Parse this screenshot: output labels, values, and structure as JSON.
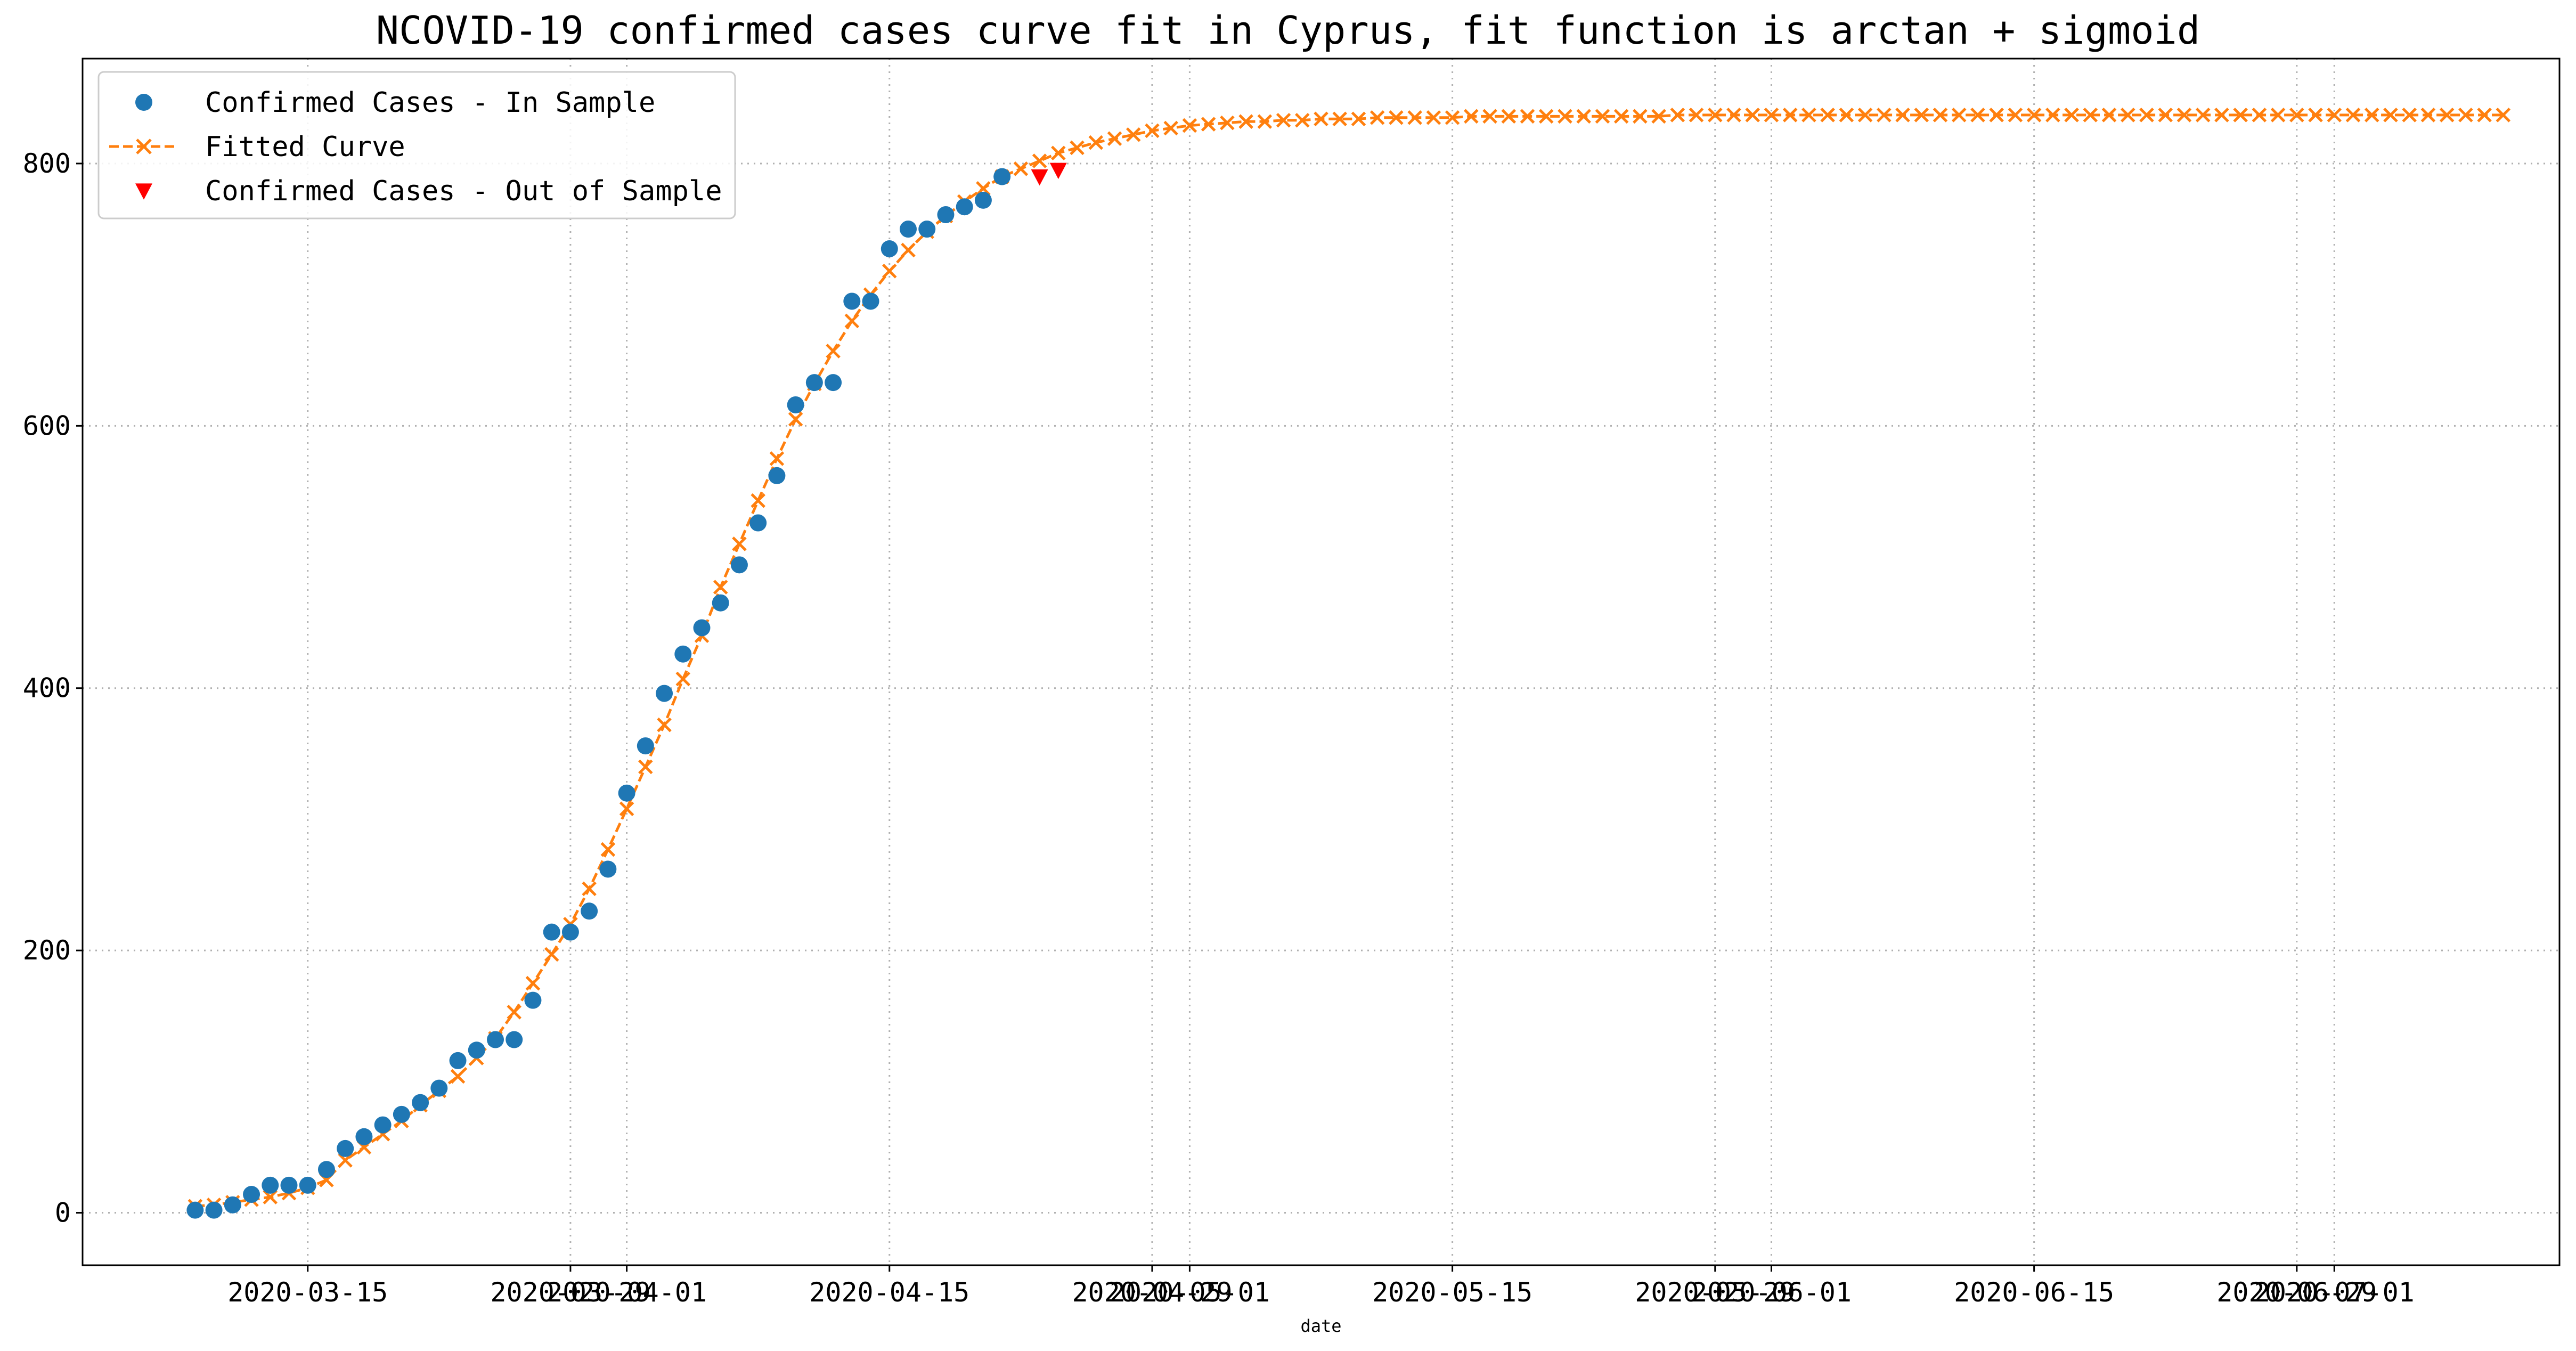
{
  "colors": {
    "in_sample": "#1f77b4",
    "fitted": "#ff7f0e",
    "out_sample": "#ff0000",
    "grid": "#b0b0b0"
  },
  "chart_data": {
    "type": "line",
    "title": "NCOVID-19 confirmed cases curve fit in Cyprus, fit function is arctan + sigmoid",
    "xlabel": "date",
    "ylabel": "",
    "x_type": "date",
    "xlim": [
      "2020-03-03",
      "2020-07-13"
    ],
    "ylim": [
      -40,
      880
    ],
    "grid": true,
    "legend_position": "top-left",
    "x_ticks": [
      {
        "date": "2020-03-15",
        "label": "2020-03-15"
      },
      {
        "date": "2020-03-29",
        "label": "2020-03-29"
      },
      {
        "date": "2020-04-01",
        "label": "2020-04-01"
      },
      {
        "date": "2020-04-15",
        "label": "2020-04-15"
      },
      {
        "date": "2020-04-29",
        "label": "2020-04-29"
      },
      {
        "date": "2020-05-01",
        "label": "2020-05-01"
      },
      {
        "date": "2020-05-15",
        "label": "2020-05-15"
      },
      {
        "date": "2020-05-29",
        "label": "2020-05-29"
      },
      {
        "date": "2020-06-01",
        "label": "2020-06-01"
      },
      {
        "date": "2020-06-15",
        "label": "2020-06-15"
      },
      {
        "date": "2020-06-29",
        "label": "2020-06-29"
      },
      {
        "date": "2020-07-01",
        "label": "2020-07-01"
      }
    ],
    "y_ticks": [
      0,
      200,
      400,
      600,
      800
    ],
    "series": [
      {
        "name": "Confirmed Cases - In Sample",
        "marker": "circle",
        "start_date": "2020-03-09",
        "values": [
          2,
          2,
          6,
          14,
          21,
          21,
          21,
          33,
          49,
          58,
          67,
          75,
          84,
          95,
          116,
          124,
          132,
          132,
          162,
          214,
          214,
          230,
          262,
          320,
          356,
          396,
          426,
          446,
          465,
          494,
          526,
          562,
          616,
          633,
          633,
          695,
          695,
          735,
          750,
          750,
          761,
          767,
          772,
          790
        ]
      },
      {
        "name": "Fitted Curve",
        "marker": "x",
        "line": "dashed",
        "start_date": "2020-03-09",
        "values": [
          5,
          6,
          8,
          10,
          12,
          15,
          19,
          25,
          40,
          50,
          60,
          70,
          82,
          93,
          104,
          118,
          133,
          153,
          175,
          197,
          220,
          247,
          277,
          308,
          340,
          372,
          407,
          440,
          477,
          510,
          543,
          575,
          605,
          632,
          657,
          680,
          700,
          718,
          734,
          748,
          760,
          771,
          781,
          790,
          796,
          802,
          808,
          812,
          816,
          819,
          822,
          825,
          827,
          829,
          830,
          831,
          832,
          832,
          833,
          833,
          834,
          834,
          834,
          835,
          835,
          835,
          835,
          835,
          836,
          836,
          836,
          836,
          836,
          836,
          836,
          836,
          836,
          836,
          836,
          837,
          837,
          837,
          837,
          837,
          837,
          837,
          837,
          837,
          837,
          837,
          837,
          837,
          837,
          837,
          837,
          837,
          837,
          837,
          837,
          837,
          837,
          837,
          837,
          837,
          837,
          837,
          837,
          837,
          837,
          837,
          837,
          837,
          837,
          837,
          837,
          837,
          837,
          837,
          837,
          837,
          837,
          837,
          837,
          837
        ]
      },
      {
        "name": "Confirmed Cases - Out of Sample",
        "marker": "triangle-down",
        "start_date": "2020-04-23",
        "values": [
          790,
          795
        ]
      }
    ]
  }
}
